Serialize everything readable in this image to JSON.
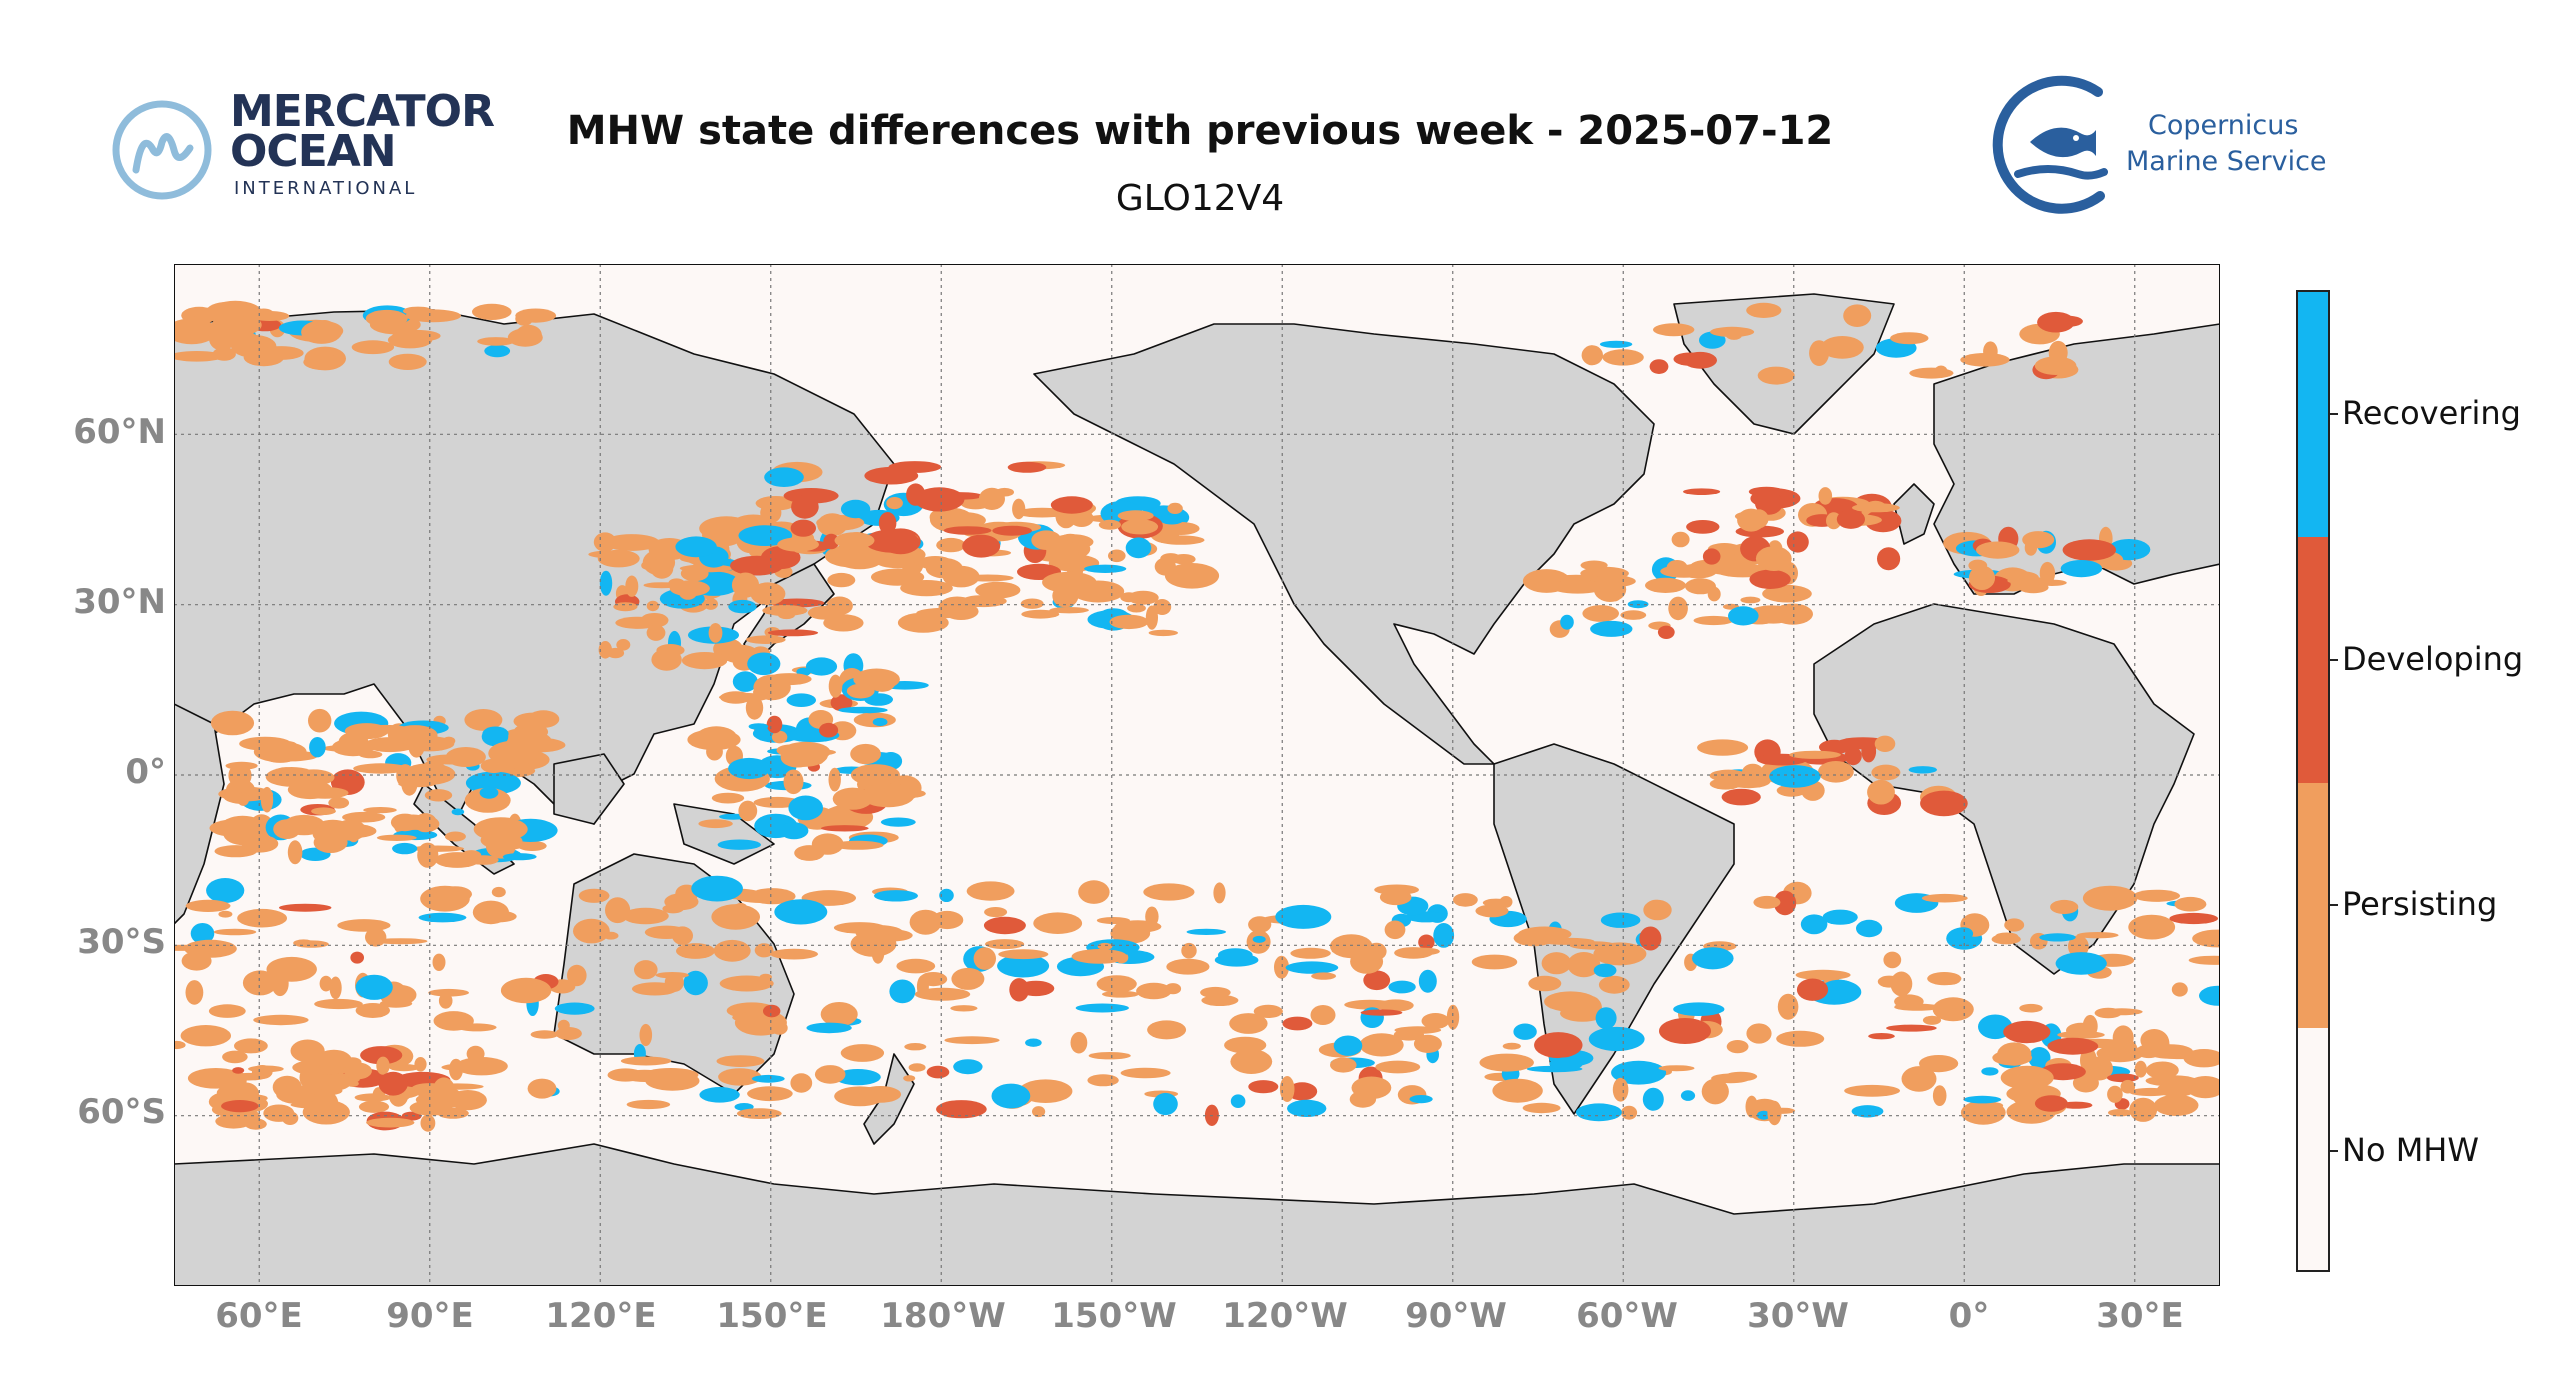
{
  "header": {
    "title": "MHW state differences with previous week - 2025-07-12",
    "subtitle": "GLO12V4"
  },
  "logos": {
    "left": {
      "line1": "MERCATOR",
      "line2": "OCEAN",
      "line3": "INTERNATIONAL",
      "icon": "mercator-m-logo-icon"
    },
    "right": {
      "line1": "Copernicus",
      "line2": "Marine Service",
      "icon": "copernicus-fish-logo-icon"
    }
  },
  "map": {
    "projection": "plate-carree",
    "central_longitude": 180,
    "lon_range": [
      45,
      405
    ],
    "lat_range": [
      -90,
      90
    ],
    "land_color": "#d3d3d3",
    "ocean_color": "#fdf8f6",
    "grid": true,
    "lat_ticks": [
      "60°N",
      "30°N",
      "0°",
      "30°S",
      "60°S"
    ],
    "lon_ticks": [
      "60°E",
      "90°E",
      "120°E",
      "150°E",
      "180°W",
      "150°W",
      "120°W",
      "90°W",
      "60°W",
      "30°W",
      "0°",
      "30°E"
    ]
  },
  "legend": {
    "placement": "right",
    "categories": [
      {
        "label": "Recovering",
        "color": "#13b6f2"
      },
      {
        "label": "Developing",
        "color": "#e05a3a"
      },
      {
        "label": "Persisting",
        "color": "#f09e5e"
      },
      {
        "label": "No MHW",
        "color": "#fdf8f6"
      }
    ]
  }
}
